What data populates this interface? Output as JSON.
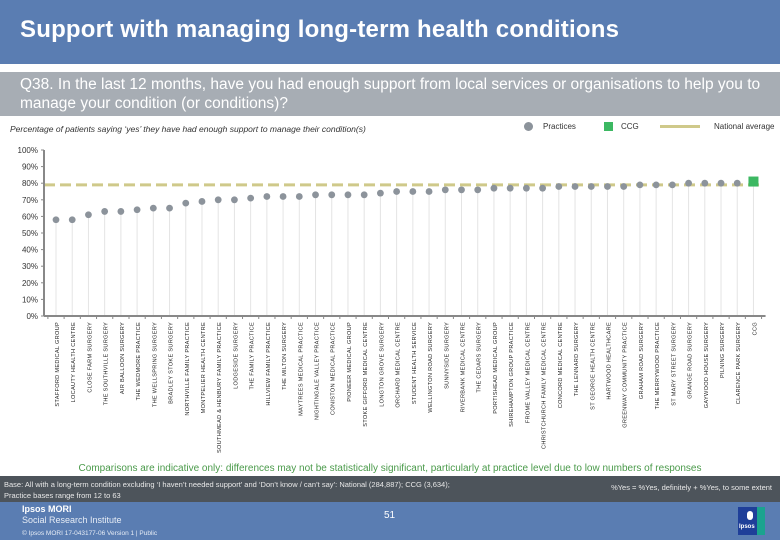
{
  "header": {
    "title": "Support with managing long-term health conditions"
  },
  "question": {
    "text": "Q38. In the last 12 months, have you had enough support from local services or organisations to help you to manage your condition (or conditions)?"
  },
  "subtitle": "Percentage of patients saying ‘yes’ they have had enough support to manage their condition(s)",
  "legend": {
    "practices": "Practices",
    "ccg": "CCG",
    "national": "National average"
  },
  "colors": {
    "practices": "#8c939b",
    "ccg": "#3cb862",
    "national": "#cfc98a",
    "title_bar": "#5a7db2",
    "question_bar": "#a7adb4"
  },
  "chart_data": {
    "type": "scatter",
    "title": "Percentage of patients saying ‘yes’ they have had enough support to manage their condition(s)",
    "xlabel": "",
    "ylabel": "",
    "ylim": [
      0,
      100
    ],
    "yticks": [
      "0%",
      "10%",
      "20%",
      "30%",
      "40%",
      "50%",
      "60%",
      "70%",
      "80%",
      "90%",
      "100%"
    ],
    "grid": false,
    "legend_position": "top-right",
    "national_average": 79,
    "categories": [
      "STAFFORD MEDICAL GROUP",
      "LOCAUTY HEALTH CENTRE",
      "CLOSE FARM SURGERY",
      "THE SOUTHVILLE SURGERY",
      "AIR BALLOON SURGERY",
      "THE WEDMORE PRACTICE",
      "THE WELLSPRING SURGERY",
      "BRADLEY STOKE SURGERY",
      "NORTHVILLE FAMILY PRACTICE",
      "MONTPELIER HEALTH CENTRE",
      "SOUTHMEAD & HENBURY FAMILY PRACTICE",
      "LODGESIDE SURGERY",
      "THE FAMILY PRACTICE",
      "HILLVIEW FAMILY PRACTICE",
      "THE MILTON SURGERY",
      "MAYTREES MEDICAL PRACTICE",
      "NIGHTINGALE VALLEY PRACTICE",
      "CONISTON MEDICAL PRACTICE",
      "PIONEER MEDICAL GROUP",
      "STOKE GIFFORD MEDICAL CENTRE",
      "LONGTON GROVE SURGERY",
      "ORCHARD MEDICAL CENTRE",
      "STUDENT HEALTH SERVICE",
      "WELLINGTON ROAD SURGERY",
      "SUNNYSIDE SURGERY",
      "RIVERBANK MEDICAL CENTRE",
      "THE CEDARS SURGERY",
      "PORTISHEAD MEDICAL GROUP",
      "SHIREHAMPTON GROUP PRACTICE",
      "FROME VALLEY MEDICAL CENTRE",
      "CHRISTCHURCH FAMILY MEDICAL CENTRE",
      "CONCORD MEDICAL CENTRE",
      "THE LENNARD SURGERY",
      "ST GEORGE HEALTH CENTRE",
      "HARTWOOD HEALTHCARE",
      "GREENWAY COMMUNITY PRACTICE",
      "GRAHAM ROAD SURGERY",
      "THE MERRYWOOD PRACTICE",
      "ST MARY STREET SURGERY",
      "GRANGE ROAD SURGERY",
      "GAYWOOD HOUSE SURGERY",
      "PILNING SURGERY",
      "CLARENCE PARK SURGERY",
      "CCG"
    ],
    "series": [
      {
        "name": "Practices",
        "values": [
          58,
          58,
          61,
          63,
          63,
          64,
          65,
          65,
          68,
          69,
          70,
          70,
          71,
          72,
          72,
          72,
          73,
          73,
          73,
          73,
          74,
          75,
          75,
          75,
          76,
          76,
          76,
          77,
          77,
          77,
          77,
          78,
          78,
          78,
          78,
          78,
          79,
          79,
          79,
          80,
          80,
          80,
          80,
          null
        ]
      },
      {
        "name": "CCG",
        "values": [
          null,
          null,
          null,
          null,
          null,
          null,
          null,
          null,
          null,
          null,
          null,
          null,
          null,
          null,
          null,
          null,
          null,
          null,
          null,
          null,
          null,
          null,
          null,
          null,
          null,
          null,
          null,
          null,
          null,
          null,
          null,
          null,
          null,
          null,
          null,
          null,
          null,
          null,
          null,
          null,
          null,
          null,
          null,
          81
        ]
      },
      {
        "name": "National average",
        "values": [
          79
        ]
      }
    ]
  },
  "note": "Comparisons are indicative only: differences may not be statistically significant, particularly at practice level due to low numbers of responses",
  "base": {
    "line1": "Base: All with a long-term condition excluding ‘I haven’t needed support’ and ‘Don’t know / can’t say’: National (284,887); CCG (3,634);",
    "line2": "Practice bases range from 12 to 63",
    "definition": "%Yes = %Yes, definitely + %Yes, to some extent"
  },
  "footer": {
    "brand1": "Ipsos MORI",
    "brand2": "Social Research Institute",
    "copyright": "© Ipsos MORI     17-043177-06 Version 1 | Public",
    "page": "51",
    "logo_text": "Ipsos"
  }
}
